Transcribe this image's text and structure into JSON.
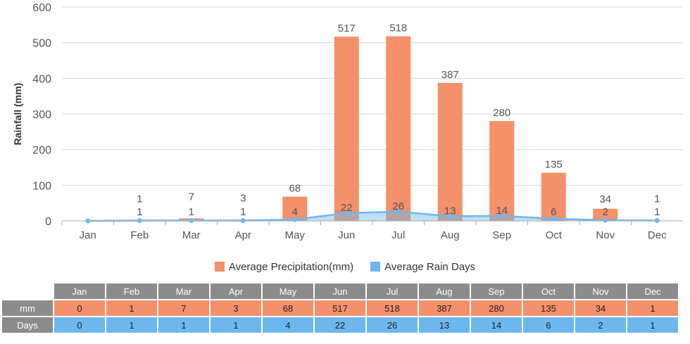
{
  "chart_data": {
    "type": "bar",
    "categories": [
      "Jan",
      "Feb",
      "Mar",
      "Apr",
      "May",
      "Jun",
      "Jul",
      "Aug",
      "Sep",
      "Oct",
      "Nov",
      "Dec"
    ],
    "series": [
      {
        "name": "Average Precipitation(mm)",
        "type": "bar",
        "values": [
          0,
          1,
          7,
          3,
          68,
          517,
          518,
          387,
          280,
          135,
          34,
          1
        ],
        "color": "#f4906a"
      },
      {
        "name": "Average Rain Days",
        "type": "area",
        "values": [
          0,
          1,
          1,
          1,
          4,
          22,
          26,
          13,
          14,
          6,
          2,
          1
        ],
        "color": "#6cb8ee"
      }
    ],
    "ylabel": "Rainfall (mm)",
    "yticks": [
      0,
      100,
      200,
      300,
      400,
      500,
      600
    ],
    "ylim": [
      0,
      600
    ],
    "grid": true,
    "legend": "bottom"
  },
  "table": {
    "row_mm_label": "mm",
    "row_days_label": "Days",
    "header_color": "#8c8c8c",
    "mm_color": "#f4906a",
    "days_color": "#6cb8ee"
  }
}
